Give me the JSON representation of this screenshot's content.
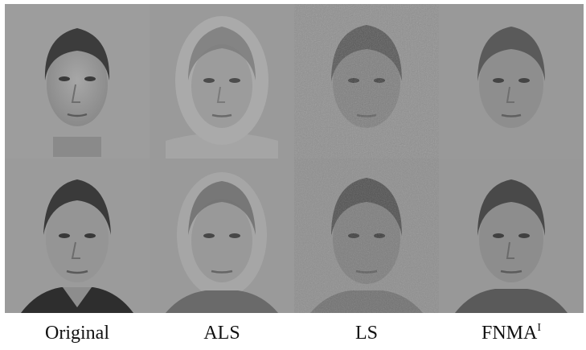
{
  "columns": [
    {
      "key": "original",
      "label": "Original",
      "superscript": ""
    },
    {
      "key": "als",
      "label": "ALS",
      "superscript": ""
    },
    {
      "key": "ls",
      "label": "LS",
      "superscript": ""
    },
    {
      "key": "fnma",
      "label": "FNMA",
      "superscript": "I"
    }
  ],
  "rows": 2,
  "colors": {
    "background": "#9a9a9a",
    "skin": "#8c8c8c",
    "hair": "#3f3f3f",
    "suit": "#2f2f2f"
  }
}
